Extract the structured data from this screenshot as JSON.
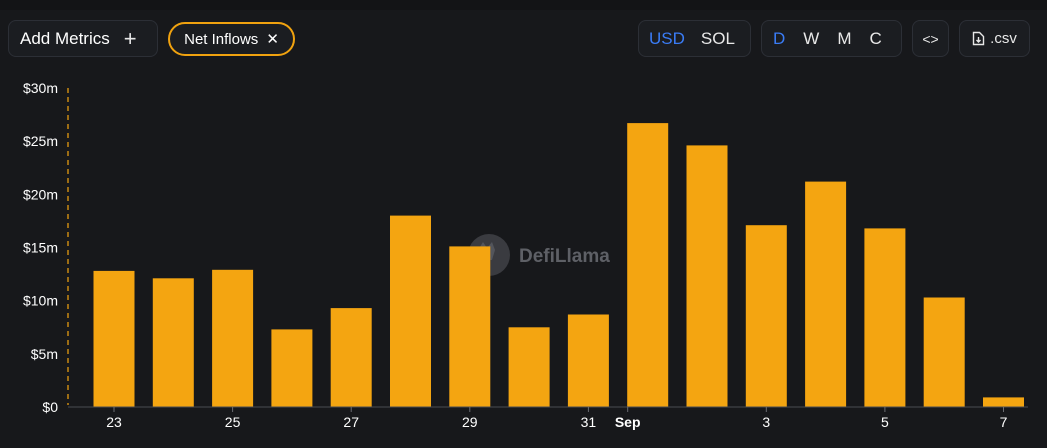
{
  "toolbar": {
    "add_metrics_label": "Add Metrics",
    "add_icon": "+",
    "metric_pill_label": "Net Inflows",
    "remove_icon": "✕",
    "currency_options": [
      "USD",
      "SOL"
    ],
    "currency_selected": "USD",
    "period_options": [
      "D",
      "W",
      "M",
      "C"
    ],
    "period_selected": "D",
    "embed_label": "<>",
    "csv_label": ".csv"
  },
  "watermark": "DefiLlama",
  "colors": {
    "bar": "#f4a511",
    "accent": "#3a7cf6",
    "pill_border": "#f0a20f"
  },
  "chart_data": {
    "type": "bar",
    "title": "",
    "xlabel": "",
    "ylabel": "",
    "ylim": [
      0,
      30
    ],
    "y_unit": "m USD",
    "ytick_labels": [
      "$0",
      "$5m",
      "$10m",
      "$15m",
      "$20m",
      "$25m",
      "$30m"
    ],
    "ytick_values": [
      0,
      5,
      10,
      15,
      20,
      25,
      30
    ],
    "categories": [
      "Aug 23",
      "Aug 24",
      "Aug 25",
      "Aug 26",
      "Aug 27",
      "Aug 28",
      "Aug 29",
      "Aug 30",
      "Aug 31",
      "Sep 1",
      "Sep 2",
      "Sep 3",
      "Sep 4",
      "Sep 5",
      "Sep 6",
      "Sep 7"
    ],
    "values": [
      12.8,
      12.1,
      12.9,
      7.3,
      9.3,
      18.0,
      15.1,
      7.5,
      8.7,
      26.7,
      24.6,
      17.1,
      21.2,
      16.8,
      10.3,
      0.9
    ],
    "x_tick_labels": [
      {
        "index": 0,
        "label": "23"
      },
      {
        "index": 2,
        "label": "25"
      },
      {
        "index": 4,
        "label": "27"
      },
      {
        "index": 6,
        "label": "29"
      },
      {
        "index": 8,
        "label": "31"
      },
      {
        "index": 9,
        "label": "Sep",
        "bold": true
      },
      {
        "index": 11,
        "label": "3"
      },
      {
        "index": 13,
        "label": "5"
      },
      {
        "index": 15,
        "label": "7"
      }
    ],
    "grid": false,
    "legend": "none"
  }
}
